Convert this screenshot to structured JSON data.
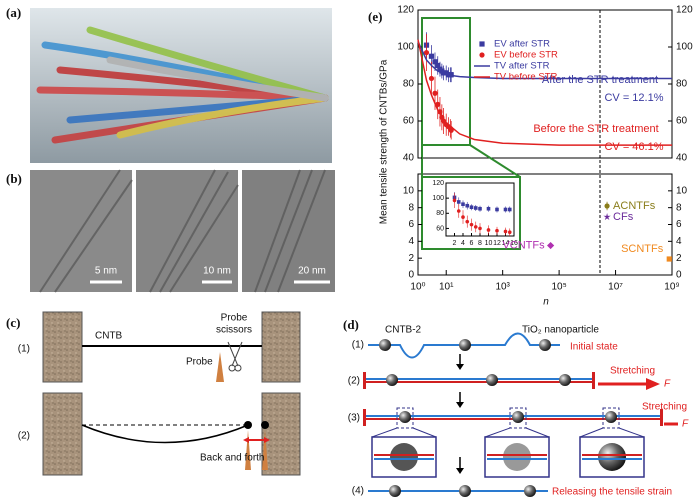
{
  "panel_labels": [
    "(a)",
    "(b)",
    "(c)",
    "(d)",
    "(e)"
  ],
  "panel_b": {
    "scale_bars": [
      "5 nm",
      "10 nm",
      "20 nm"
    ]
  },
  "panel_c": {
    "steps": [
      "(1)",
      "(2)"
    ],
    "cntb": "CNTB",
    "probe_scissors": [
      "Probe",
      "scissors"
    ],
    "probe": "Probe",
    "back_and_forth": "Back and forth"
  },
  "panel_d": {
    "cntb2": "CNTB-2",
    "nanoparticle": "TiO₂ nanoparticle",
    "steps": [
      "(1)",
      "(2)",
      "(3)",
      "(4)"
    ],
    "initial_state": "Initial state",
    "stretching": "Stretching",
    "force": "F",
    "releasing": "Releasing the tensile strain"
  },
  "chart_data": {
    "type": "scatter",
    "y_label": "Mean tensile strength of CNTBs/GPa",
    "x_label": "n",
    "x_log": true,
    "xlim": [
      1,
      1000000000
    ],
    "xticks": [
      {
        "value": 1,
        "label": "10⁰"
      },
      {
        "value": 10,
        "label": "10¹"
      },
      {
        "value": 1000,
        "label": "10³"
      },
      {
        "value": 100000,
        "label": "10⁵"
      },
      {
        "value": 10000000,
        "label": "10⁷"
      },
      {
        "value": 1000000000,
        "label": "10⁹"
      }
    ],
    "upper": {
      "ylim": [
        40,
        120
      ],
      "yticks": [
        40,
        60,
        80,
        100,
        120
      ]
    },
    "lower": {
      "ylim": [
        0,
        12
      ],
      "yticks": [
        0,
        2,
        4,
        6,
        8,
        10
      ]
    },
    "inset": {
      "xlim": [
        0,
        16
      ],
      "xticks": [
        2,
        4,
        6,
        8,
        10,
        12,
        14,
        16
      ],
      "ylim": [
        50,
        120
      ],
      "yticks": [
        60,
        80,
        100,
        120
      ]
    },
    "annotations": [
      "After the STR treatment",
      "CV = 12.1%",
      "Before the STR treatment",
      "CV = 46.1%"
    ],
    "series": [
      {
        "name": "EV after STR",
        "type": "scatter",
        "marker": "square",
        "section": "upper",
        "color": "#3b3ba0",
        "x": [
          2,
          3,
          4,
          5,
          6,
          7,
          8,
          10,
          12,
          14,
          15
        ],
        "values": [
          101,
          95,
          92,
          90,
          88,
          87,
          86,
          86,
          85,
          85,
          85
        ],
        "errors": [
          7,
          6,
          5,
          5,
          4,
          4,
          4,
          4,
          4,
          4,
          4
        ]
      },
      {
        "name": "EV before STR",
        "type": "scatter",
        "marker": "circle",
        "section": "upper",
        "color": "#e02020",
        "x": [
          2,
          3,
          4,
          5,
          6,
          7,
          8,
          10,
          12,
          14,
          15
        ],
        "values": [
          97,
          83,
          75,
          69,
          65,
          62,
          60,
          58,
          57,
          56,
          55
        ],
        "errors": [
          10,
          9,
          9,
          8,
          8,
          7,
          7,
          6,
          5,
          5,
          5
        ]
      },
      {
        "name": "TV after STR",
        "type": "line",
        "section": "upper",
        "color": "#3b3ba0",
        "x": [
          1,
          2,
          3,
          5,
          10,
          30,
          100,
          1000,
          100000,
          10000000,
          1000000000
        ],
        "values": [
          103,
          93,
          90,
          87,
          85,
          84,
          83.5,
          83,
          83,
          83,
          83
        ]
      },
      {
        "name": "TV before STR",
        "type": "line",
        "section": "upper",
        "color": "#e02020",
        "x": [
          1,
          2,
          3,
          5,
          10,
          30,
          100,
          1000,
          100000,
          10000000,
          1000000000
        ],
        "values": [
          104,
          82,
          74,
          66,
          59,
          53,
          50,
          48,
          47,
          47,
          47
        ]
      },
      {
        "name": "ACNTFs",
        "type": "scatter",
        "marker": "circle",
        "section": "lower",
        "color": "#8a7d1a",
        "x": [
          5000000
        ],
        "values": [
          8.2
        ],
        "errors": [
          0.5
        ]
      },
      {
        "name": "CFs",
        "type": "scatter",
        "marker": "star",
        "section": "lower",
        "color": "#6a2a9a",
        "x": [
          5000000
        ],
        "values": [
          6.9
        ],
        "errors": [
          0.2
        ]
      },
      {
        "name": "VCNTFs",
        "type": "scatter",
        "marker": "diamond",
        "section": "lower",
        "color": "#b030b0",
        "x": [
          50000
        ],
        "values": [
          3.5
        ],
        "errors": [
          0.2
        ]
      },
      {
        "name": "SCNTFs",
        "type": "scatter",
        "marker": "square",
        "section": "lower",
        "color": "#f08a20",
        "x": [
          800000000
        ],
        "values": [
          1.9
        ],
        "errors": [
          0.2
        ]
      }
    ]
  }
}
